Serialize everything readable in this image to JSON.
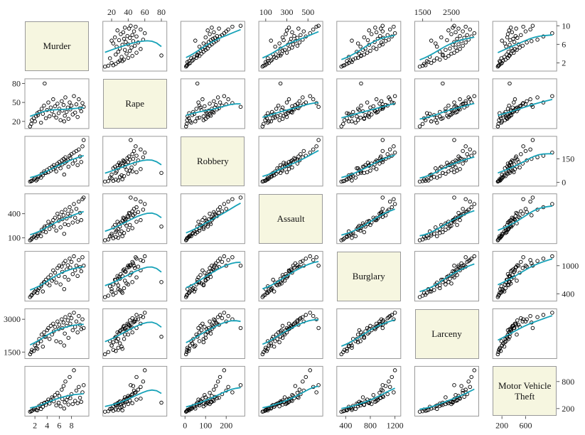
{
  "chart_data": {
    "type": "scatter_matrix",
    "point_color": "#000000",
    "smooth_color": "#17a2b8",
    "diagonal_color": "#f6f6e0",
    "variables": [
      {
        "name": "Murder",
        "lim": [
          0.7,
          10.5
        ],
        "xticks": [
          2,
          4,
          6,
          8
        ],
        "yticks": [
          2,
          6,
          10
        ],
        "values": [
          1.2,
          1.5,
          1.8,
          2.0,
          2.2,
          2.5,
          2.7,
          3.0,
          3.1,
          3.3,
          3.5,
          3.8,
          4.0,
          4.2,
          4.4,
          4.6,
          4.8,
          5.0,
          5.1,
          5.3,
          5.5,
          5.7,
          5.9,
          6.0,
          6.2,
          6.4,
          6.5,
          6.7,
          6.9,
          7.0,
          7.2,
          7.4,
          7.5,
          7.7,
          7.8,
          8.0,
          8.2,
          8.4,
          8.6,
          8.8,
          9.0,
          9.2,
          9.4,
          9.6,
          9.8,
          10.0,
          1.4,
          3.6,
          6.8,
          2.4
        ]
      },
      {
        "name": "Rape",
        "lim": [
          12,
          84
        ],
        "xticks": [
          20,
          40,
          60,
          80
        ],
        "yticks": [
          20,
          50,
          80
        ],
        "values": [
          12,
          22,
          25,
          20,
          28,
          30,
          35,
          18,
          40,
          32,
          45,
          25,
          38,
          50,
          28,
          42,
          36,
          55,
          30,
          44,
          26,
          48,
          33,
          40,
          22,
          52,
          37,
          46,
          29,
          58,
          35,
          42,
          24,
          50,
          39,
          45,
          31,
          60,
          34,
          47,
          27,
          55,
          41,
          36,
          49,
          43,
          16,
          80,
          20,
          33
        ]
      },
      {
        "name": "Robbery",
        "lim": [
          -10,
          280
        ],
        "xticks": [
          0,
          100,
          200
        ],
        "yticks": [
          0,
          150
        ],
        "values": [
          5,
          10,
          18,
          25,
          12,
          35,
          40,
          30,
          55,
          45,
          70,
          60,
          80,
          65,
          90,
          75,
          100,
          85,
          110,
          95,
          70,
          120,
          105,
          130,
          90,
          140,
          115,
          150,
          125,
          160,
          135,
          145,
          100,
          170,
          155,
          180,
          120,
          190,
          140,
          200,
          110,
          210,
          165,
          130,
          230,
          270,
          8,
          60,
          50,
          20
        ]
      },
      {
        "name": "Assault",
        "lim": [
          55,
          620
        ],
        "xticks": [
          100,
          300,
          500
        ],
        "yticks": [
          100,
          400
        ],
        "values": [
          70,
          95,
          110,
          130,
          100,
          150,
          160,
          120,
          200,
          180,
          220,
          170,
          250,
          300,
          210,
          260,
          280,
          320,
          240,
          350,
          190,
          400,
          310,
          360,
          230,
          420,
          330,
          380,
          270,
          450,
          340,
          400,
          260,
          480,
          370,
          430,
          290,
          520,
          350,
          460,
          300,
          550,
          410,
          320,
          580,
          600,
          80,
          240,
          150,
          120
        ]
      },
      {
        "name": "Burglary",
        "lim": [
          290,
          1260
        ],
        "xticks": [
          400,
          800,
          1200
        ],
        "yticks": [
          400,
          1000
        ],
        "values": [
          330,
          380,
          420,
          450,
          500,
          480,
          520,
          560,
          600,
          450,
          650,
          700,
          620,
          750,
          580,
          800,
          680,
          900,
          720,
          850,
          640,
          950,
          780,
          1000,
          600,
          980,
          870,
          1050,
          760,
          1100,
          920,
          1010,
          700,
          1150,
          960,
          1080,
          820,
          1200,
          900,
          1000,
          780,
          1120,
          970,
          880,
          1180,
          1000,
          360,
          650,
          500,
          420
        ]
      },
      {
        "name": "Larceny",
        "lim": [
          1300,
          3380
        ],
        "xticks": [
          1500,
          2500
        ],
        "yticks": [
          1500,
          3000
        ],
        "values": [
          1400,
          1600,
          1550,
          1800,
          1700,
          1900,
          2100,
          2000,
          2300,
          1750,
          2400,
          2200,
          2500,
          2600,
          2100,
          2700,
          2300,
          2800,
          2450,
          2650,
          2000,
          2900,
          2550,
          2750,
          1950,
          3000,
          2600,
          2850,
          2350,
          3100,
          2700,
          2950,
          2150,
          3200,
          2800,
          3050,
          2500,
          3300,
          2650,
          2900,
          2400,
          3150,
          2750,
          2550,
          3000,
          2600,
          1500,
          2200,
          1800,
          1650
        ]
      },
      {
        "name": "Motor Vehicle Theft",
        "lim": [
          80,
          1090
        ],
        "xticks": [
          200,
          600
        ],
        "yticks": [
          200,
          800
        ],
        "values": [
          130,
          150,
          180,
          200,
          170,
          220,
          260,
          190,
          300,
          240,
          320,
          280,
          350,
          400,
          310,
          380,
          450,
          420,
          360,
          500,
          270,
          550,
          330,
          480,
          250,
          620,
          410,
          700,
          340,
          800,
          390,
          460,
          290,
          900,
          430,
          520,
          300,
          1050,
          370,
          600,
          320,
          680,
          440,
          350,
          560,
          720,
          140,
          330,
          200,
          160
        ]
      }
    ]
  }
}
